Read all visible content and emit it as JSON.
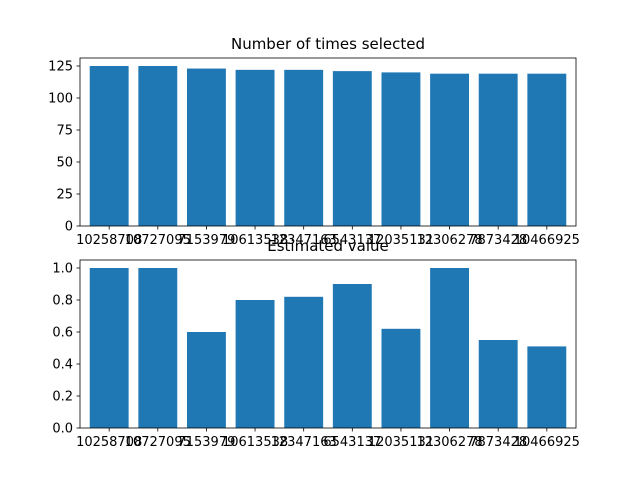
{
  "chart_data": [
    {
      "type": "bar",
      "title": "Number of times selected",
      "categories": [
        "10258708",
        "10727095",
        "7153979",
        "10613538",
        "12347163",
        "6543137",
        "12035131",
        "12306278",
        "7873428",
        "10466925"
      ],
      "values": [
        125,
        125,
        123,
        122,
        122,
        121,
        120,
        119,
        119,
        119
      ],
      "ylim": [
        0,
        131.25
      ],
      "yticks": [
        0,
        25,
        50,
        75,
        100,
        125
      ],
      "ytick_labels": [
        "0",
        "25",
        "50",
        "75",
        "100",
        "125"
      ],
      "xlabel": "",
      "ylabel": "",
      "grid": false,
      "color": "#1f77b4"
    },
    {
      "type": "bar",
      "title": "Estimated value",
      "categories": [
        "10258708",
        "10727095",
        "7153979",
        "10613538",
        "12347163",
        "6543137",
        "12035131",
        "12306278",
        "7873428",
        "10466925"
      ],
      "values": [
        1.0,
        1.0,
        0.6,
        0.8,
        0.82,
        0.9,
        0.62,
        1.0,
        0.55,
        0.51
      ],
      "ylim": [
        0,
        1.05
      ],
      "yticks": [
        0,
        0.2,
        0.4,
        0.6,
        0.8,
        1.0
      ],
      "ytick_labels": [
        "0.0",
        "0.2",
        "0.4",
        "0.6",
        "0.8",
        "1.0"
      ],
      "xlabel": "",
      "ylabel": "",
      "grid": false,
      "color": "#1f77b4"
    }
  ]
}
